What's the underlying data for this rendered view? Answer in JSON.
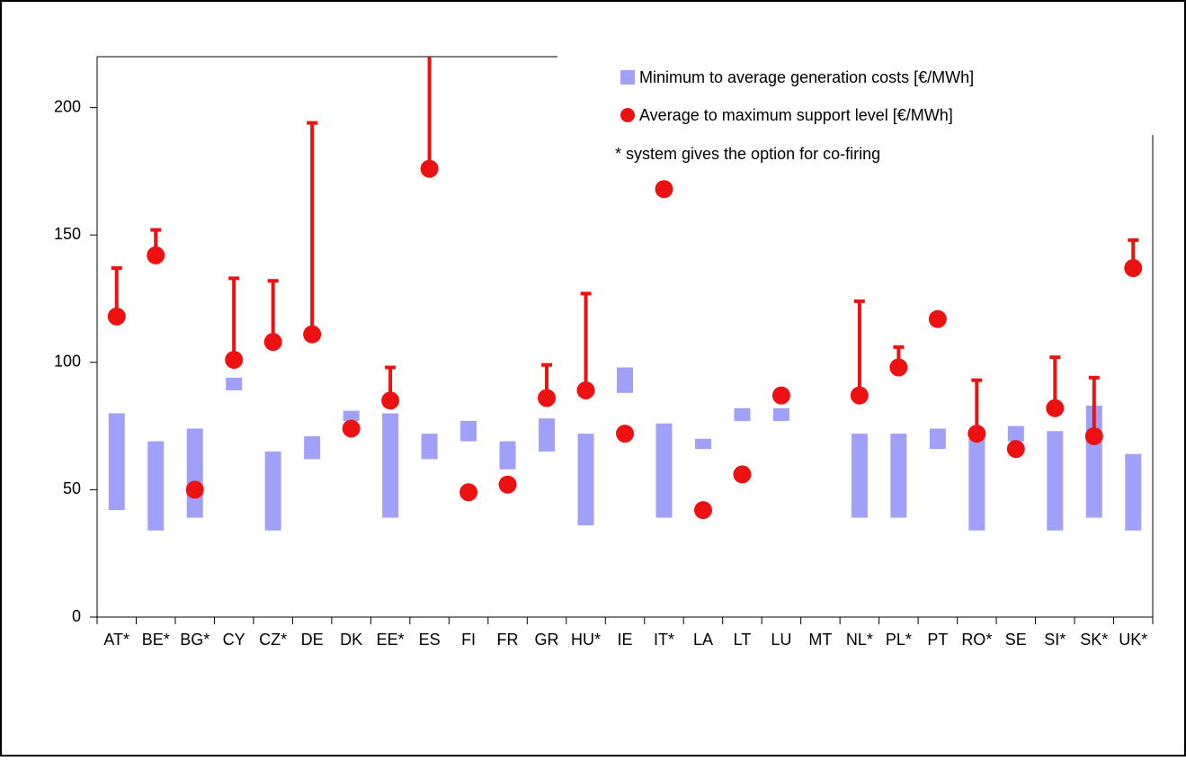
{
  "chart_data": {
    "type": "range-bar-dot",
    "categories": [
      "AT*",
      "BE*",
      "BG*",
      "CY",
      "CZ*",
      "DE",
      "DK",
      "EE*",
      "ES",
      "FI",
      "FR",
      "GR",
      "HU*",
      "IE",
      "IT*",
      "LA",
      "LT",
      "LU",
      "MT",
      "NL*",
      "PL*",
      "PT",
      "RO*",
      "SE",
      "SI*",
      "SK*",
      "UK*"
    ],
    "series": [
      {
        "name": "Minimum to average generation costs [€/MWh]",
        "color": "#a0a0f8",
        "low": [
          42,
          34,
          39,
          89,
          34,
          62,
          77,
          39,
          62,
          69,
          58,
          65,
          36,
          88,
          39,
          66,
          77,
          77,
          null,
          39,
          39,
          66,
          34,
          69,
          34,
          39,
          34
        ],
        "high": [
          80,
          69,
          74,
          94,
          65,
          71,
          81,
          80,
          72,
          77,
          69,
          78,
          72,
          98,
          76,
          70,
          82,
          82,
          null,
          72,
          72,
          74,
          70,
          75,
          73,
          83,
          64
        ]
      },
      {
        "name": "Average to maximum support level [€/MWh]",
        "color": "#ee1111",
        "values": [
          118,
          142,
          50,
          101,
          108,
          111,
          74,
          85,
          176,
          49,
          52,
          86,
          89,
          72,
          168,
          42,
          56,
          87,
          null,
          87,
          98,
          117,
          72,
          66,
          82,
          71,
          137
        ],
        "max": [
          137,
          152,
          null,
          133,
          132,
          194,
          null,
          98,
          225,
          null,
          null,
          99,
          127,
          null,
          null,
          null,
          null,
          null,
          null,
          124,
          106,
          null,
          93,
          null,
          102,
          94,
          148
        ]
      }
    ],
    "note": "* system gives the option for co-firing",
    "ylim": [
      0,
      220
    ],
    "yticks": [
      0,
      50,
      100,
      150,
      200
    ]
  }
}
